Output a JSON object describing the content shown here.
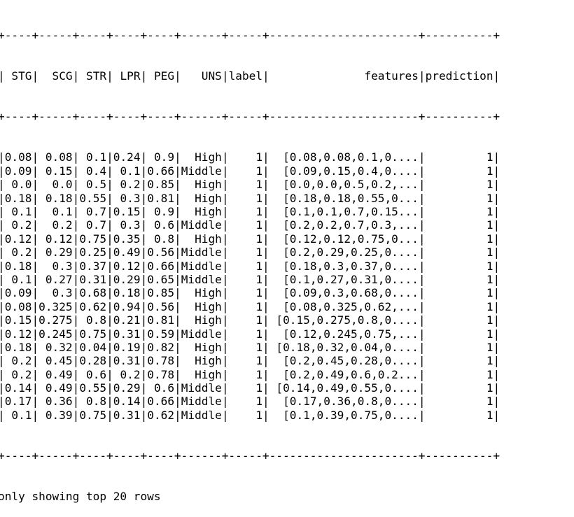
{
  "table": {
    "columns": [
      "STG",
      "SCG",
      "STR",
      "LPR",
      "PEG",
      "UNS",
      "label",
      "features",
      "prediction"
    ],
    "rows": [
      [
        "0.08",
        "0.08",
        "0.1",
        "0.24",
        "0.9",
        "High",
        "1",
        "[0.08,0.08,0.1,0....",
        "1"
      ],
      [
        "0.09",
        "0.15",
        "0.4",
        "0.1",
        "0.66",
        "Middle",
        "1",
        "[0.09,0.15,0.4,0....",
        "1"
      ],
      [
        "0.0",
        "0.0",
        "0.5",
        "0.2",
        "0.85",
        "High",
        "1",
        "[0.0,0.0,0.5,0.2,...",
        "1"
      ],
      [
        "0.18",
        "0.18",
        "0.55",
        "0.3",
        "0.81",
        "High",
        "1",
        "[0.18,0.18,0.55,0...",
        "1"
      ],
      [
        "0.1",
        "0.1",
        "0.7",
        "0.15",
        "0.9",
        "High",
        "1",
        "[0.1,0.1,0.7,0.15...",
        "1"
      ],
      [
        "0.2",
        "0.2",
        "0.7",
        "0.3",
        "0.6",
        "Middle",
        "1",
        "[0.2,0.2,0.7,0.3,...",
        "1"
      ],
      [
        "0.12",
        "0.12",
        "0.75",
        "0.35",
        "0.8",
        "High",
        "1",
        "[0.12,0.12,0.75,0...",
        "1"
      ],
      [
        "0.2",
        "0.29",
        "0.25",
        "0.49",
        "0.56",
        "Middle",
        "1",
        "[0.2,0.29,0.25,0....",
        "1"
      ],
      [
        "0.18",
        "0.3",
        "0.37",
        "0.12",
        "0.66",
        "Middle",
        "1",
        "[0.18,0.3,0.37,0....",
        "1"
      ],
      [
        "0.1",
        "0.27",
        "0.31",
        "0.29",
        "0.65",
        "Middle",
        "1",
        "[0.1,0.27,0.31,0....",
        "1"
      ],
      [
        "0.09",
        "0.3",
        "0.68",
        "0.18",
        "0.85",
        "High",
        "1",
        "[0.09,0.3,0.68,0....",
        "1"
      ],
      [
        "0.08",
        "0.325",
        "0.62",
        "0.94",
        "0.56",
        "High",
        "1",
        "[0.08,0.325,0.62,...",
        "1"
      ],
      [
        "0.15",
        "0.275",
        "0.8",
        "0.21",
        "0.81",
        "High",
        "1",
        "[0.15,0.275,0.8,0....",
        "1"
      ],
      [
        "0.12",
        "0.245",
        "0.75",
        "0.31",
        "0.59",
        "Middle",
        "1",
        "[0.12,0.245,0.75,...",
        "1"
      ],
      [
        "0.18",
        "0.32",
        "0.04",
        "0.19",
        "0.82",
        "High",
        "1",
        "[0.18,0.32,0.04,0....",
        "1"
      ],
      [
        "0.2",
        "0.45",
        "0.28",
        "0.31",
        "0.78",
        "High",
        "1",
        "[0.2,0.45,0.28,0....",
        "1"
      ],
      [
        "0.2",
        "0.49",
        "0.6",
        "0.2",
        "0.78",
        "High",
        "1",
        "[0.2,0.49,0.6,0.2...",
        "1"
      ],
      [
        "0.14",
        "0.49",
        "0.55",
        "0.29",
        "0.6",
        "Middle",
        "1",
        "[0.14,0.49,0.55,0....",
        "1"
      ],
      [
        "0.17",
        "0.36",
        "0.8",
        "0.14",
        "0.66",
        "Middle",
        "1",
        "[0.17,0.36,0.8,0....",
        "1"
      ],
      [
        "0.1",
        "0.39",
        "0.75",
        "0.31",
        "0.62",
        "Middle",
        "1",
        "[0.1,0.39,0.75,0....",
        "1"
      ]
    ]
  },
  "footer": "only showing top 20 rows"
}
